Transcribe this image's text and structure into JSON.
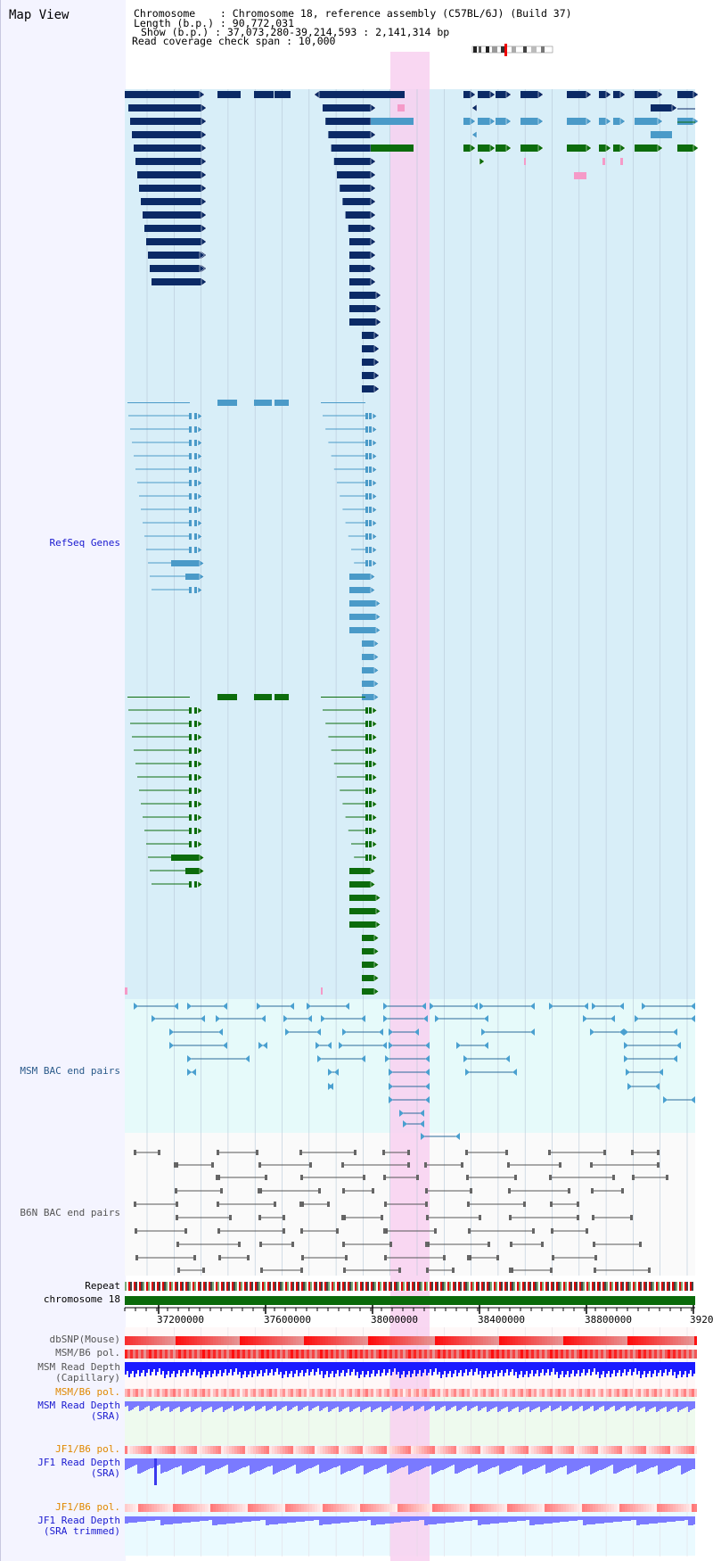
{
  "view_title": "Map View",
  "info": {
    "line1": "Chromosome    : Chromosome 18, reference assembly (C57BL/6J) (Build 37)",
    "line2": "Length (b.p.) : 90,772,031",
    "line3": "Show (b.p.) : 37,073,280-39,214,593 : 2,141,314 bp",
    "line4": "Read coverage check span : 10,000"
  },
  "tracks": {
    "refseq": "RefSeq Genes",
    "msm_bac": "MSM BAC end pairs",
    "b6n_bac": "B6N BAC end pairs",
    "repeat": "Repeat",
    "chromosome": "chromosome 18",
    "dbsnp": "dbSNP(Mouse)",
    "msm_pol1": "MSM/B6 pol.",
    "msm_depth_cap": "MSM Read Depth\n(Capillary)",
    "msm_pol2": "MSM/B6 pol.",
    "msm_depth_sra": "MSM Read Depth\n(SRA)",
    "jf1_pol1": "JF1/B6 pol.",
    "jf1_depth_sra": "JF1 Read Depth\n(SRA)",
    "jf1_pol2": "JF1/B6 pol.",
    "jf1_depth_trim": "JF1 Read Depth\n(SRA trimmed)"
  },
  "ruler": {
    "ticks": [
      "37200000",
      "37600000",
      "38000000",
      "38400000",
      "38800000",
      "3920"
    ]
  },
  "colors": {
    "navy": "#0b2a66",
    "lightblue": "#4a9ac8",
    "green": "#0c6c0c",
    "refseq_bg": "#d8eef8",
    "highlight": "#f8d0f0",
    "chrom_green": "#0a6a0a",
    "depth_blue": "#1a1aff",
    "depth_light": "#7a7aff"
  }
}
